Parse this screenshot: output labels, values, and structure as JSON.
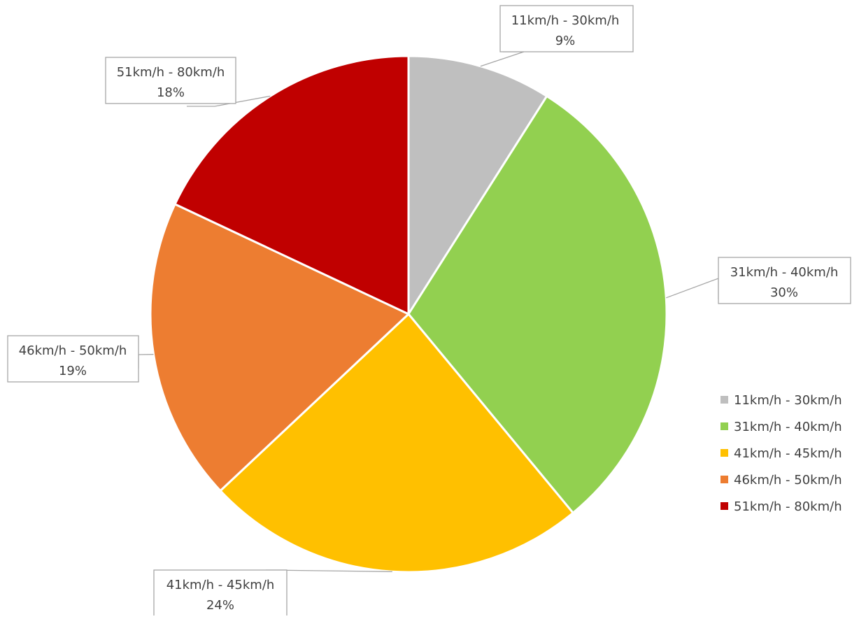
{
  "chart_data": {
    "type": "pie",
    "title": "",
    "start_angle_deg": 0,
    "direction": "clockwise",
    "slices": [
      {
        "label": "11km/h - 30km/h",
        "value": 9,
        "pct_label": "9%",
        "color": "#bfbfbf"
      },
      {
        "label": "31km/h - 40km/h",
        "value": 30,
        "pct_label": "30%",
        "color": "#92d050"
      },
      {
        "label": "41km/h - 45km/h",
        "value": 24,
        "pct_label": "24%",
        "color": "#ffc000"
      },
      {
        "label": "46km/h - 50km/h",
        "value": 19,
        "pct_label": "19%",
        "color": "#ed7d31"
      },
      {
        "label": "51km/h - 80km/h",
        "value": 18,
        "pct_label": "18%",
        "color": "#c00000"
      }
    ],
    "legend": {
      "position": "right",
      "entries": [
        "11km/h - 30km/h",
        "31km/h - 40km/h",
        "41km/h - 45km/h",
        "46km/h - 50km/h",
        "51km/h - 80km/h"
      ]
    },
    "data_labels": {
      "show_category": true,
      "show_percent": true,
      "callouts": true
    }
  }
}
